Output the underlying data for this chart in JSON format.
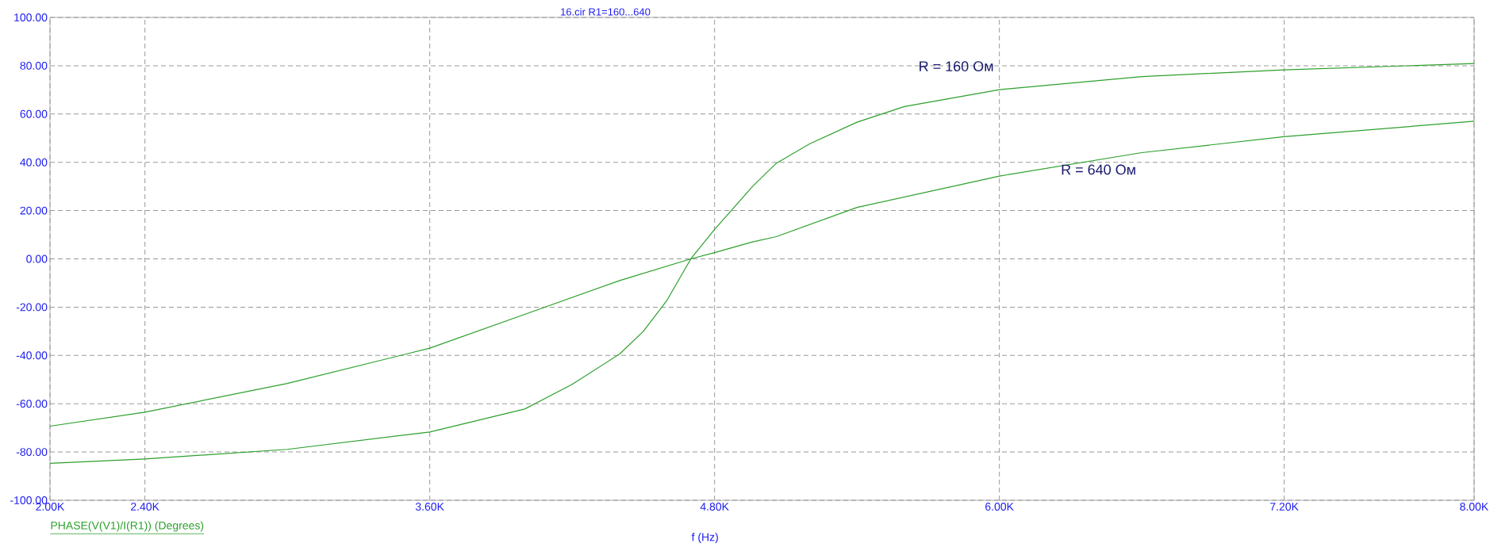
{
  "chart_data": {
    "type": "line",
    "title": "16.cir R1=160...640",
    "xlabel": "f (Hz)",
    "x": [
      2000,
      2400,
      3000,
      3600,
      4000,
      4200,
      4400,
      4500,
      4600,
      4700,
      4800,
      4960,
      5060,
      5200,
      5400,
      5600,
      6000,
      6600,
      7200,
      8000
    ],
    "series": [
      {
        "name": "R = 160 Ом",
        "color": "#2ca02c",
        "values": [
          -84.7,
          -82.9,
          -78.9,
          -71.7,
          -62.2,
          -52,
          -39.4,
          -30,
          -17.1,
          0,
          12.2,
          30,
          39.6,
          47.6,
          56.6,
          63.1,
          70.1,
          75.5,
          78.3,
          80.9
        ]
      },
      {
        "name": "R = 640 Ом",
        "color": "#2ca02c",
        "values": [
          -69.3,
          -63.5,
          -51.6,
          -37,
          -23,
          null,
          -9,
          null,
          null,
          0,
          2.6,
          7,
          9.2,
          null,
          21.3,
          null,
          34.3,
          44,
          50.6,
          57
        ]
      }
    ],
    "xlim": [
      2000,
      8000
    ],
    "ylim": [
      -100,
      100
    ],
    "xticks": [
      {
        "value": 2000,
        "label": "2.00K"
      },
      {
        "value": 2400,
        "label": "2.40K"
      },
      {
        "value": 3600,
        "label": "3.60K"
      },
      {
        "value": 4800,
        "label": "4.80K"
      },
      {
        "value": 6000,
        "label": "6.00K"
      },
      {
        "value": 7200,
        "label": "7.20K"
      },
      {
        "value": 8000,
        "label": "8.00K"
      }
    ],
    "yticks": [
      {
        "value": -100,
        "label": "-100.00"
      },
      {
        "value": -80,
        "label": "-80.00"
      },
      {
        "value": -60,
        "label": "-60.00"
      },
      {
        "value": -40,
        "label": "-40.00"
      },
      {
        "value": -20,
        "label": "-20.00"
      },
      {
        "value": 0,
        "label": "0.00"
      },
      {
        "value": 20,
        "label": "20.00"
      },
      {
        "value": 40,
        "label": "40.00"
      },
      {
        "value": 60,
        "label": "60.00"
      },
      {
        "value": 80,
        "label": "80.00"
      },
      {
        "value": 100,
        "label": "100.00"
      }
    ],
    "grid": true,
    "line_style": "solid",
    "annotations": [
      "PHASE(V(V1)/I(R1)) (Degrees)"
    ]
  }
}
